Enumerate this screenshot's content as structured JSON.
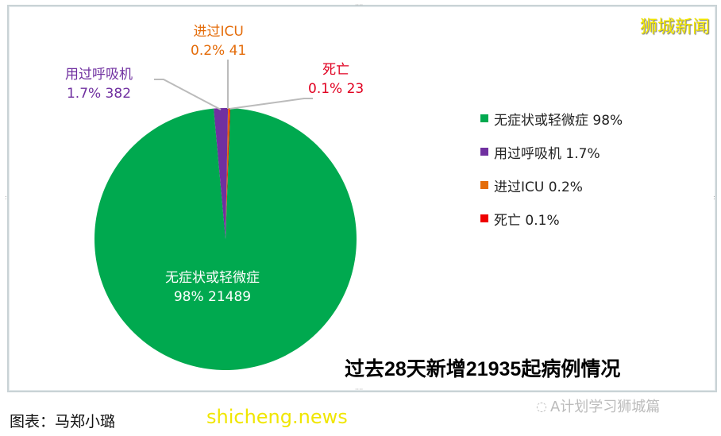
{
  "brand": "狮城新闻",
  "watermark": "A计划学习狮城篇",
  "site_watermark": "shicheng.news",
  "caption": "图表：马郑小璐",
  "chart_data": {
    "type": "pie",
    "title": "过去28天新增21935起病例情况",
    "legend_position": "right",
    "slices": [
      {
        "name": "进过ICU",
        "percent_label": "0.2%",
        "value": 41,
        "color": "#e46c0a",
        "legend": "进过ICU 0.2%"
      },
      {
        "name": "死亡",
        "percent_label": "0.1%",
        "value": 23,
        "color": "#ee0000",
        "legend": "死亡 0.1%"
      },
      {
        "name": "无症状或轻微症",
        "percent_label": "98%",
        "value": 21489,
        "color": "#00a94f",
        "legend": "无症状或轻微症 98%"
      },
      {
        "name": "用过呼吸机",
        "percent_label": "1.7%",
        "value": 382,
        "color": "#7030a0",
        "legend": "用过呼吸机 1.7%"
      }
    ],
    "data_labels": {
      "icu": {
        "name": "进过ICU",
        "value": "0.2%  41"
      },
      "death": {
        "name": "死亡",
        "value": "0.1%  23"
      },
      "mild": {
        "name": "无症状或轻微症",
        "value": "98% 21489"
      },
      "vent": {
        "name": "用过呼吸机",
        "value": "1.7% 382"
      }
    },
    "legend_order": [
      2,
      3,
      0,
      1
    ]
  }
}
